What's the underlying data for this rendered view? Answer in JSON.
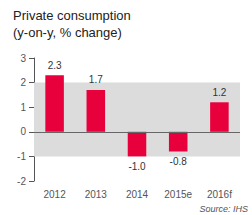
{
  "chart_data": {
    "type": "bar",
    "title": "Private consumption",
    "subtitle": "(y-on-y, % change)",
    "annotations": [
      "Source: IHS"
    ],
    "categories": [
      "2012",
      "2013",
      "2014",
      "2015e",
      "2016f"
    ],
    "values": [
      2.3,
      1.7,
      -1.0,
      -0.8,
      1.2
    ],
    "value_labels": [
      "2.3",
      "1.7",
      "-1.0",
      "-0.8",
      "1.2"
    ],
    "data_labels": true,
    "color": "#e8003d",
    "ylim": [
      -2,
      3
    ],
    "yticks": [
      -2,
      -1,
      0,
      1,
      2,
      3
    ],
    "band": {
      "from": -1,
      "to": 2,
      "color": "#dcdcdc"
    },
    "reference_line": {
      "value": 0,
      "color": "#666666"
    },
    "grid": false
  }
}
